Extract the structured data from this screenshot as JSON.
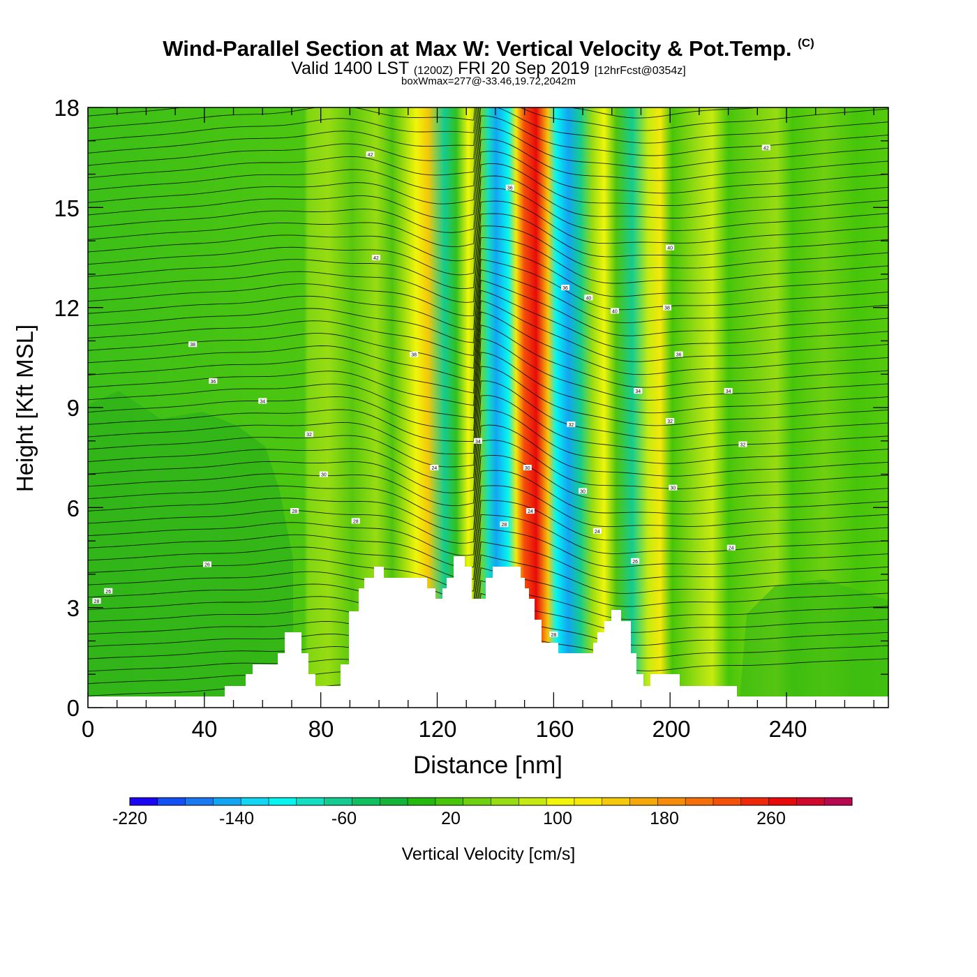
{
  "header": {
    "title": "Wind-Parallel Section at Max W: Vertical Velocity & Pot.Temp.",
    "copyright": "(C)",
    "subtitle_valid": "Valid 1400 LST",
    "subtitle_utc": "(1200Z)",
    "subtitle_date": "FRI 20 Sep 2019",
    "subtitle_fcst": "[12hrFcst@0354z]",
    "stats": "boxWmax=277@-33.46,19.72,2042m"
  },
  "chart_data": {
    "type": "heatmap",
    "title": "Wind-Parallel Section at Max W: Vertical Velocity & Pot.Temp.",
    "xlabel": "Distance [nm]",
    "ylabel": "Height [Kft MSL]",
    "xlim": [
      0,
      275
    ],
    "ylim": [
      0,
      18
    ],
    "x_ticks": [
      "0",
      "40",
      "80",
      "120",
      "160",
      "200",
      "240"
    ],
    "y_ticks": [
      "0",
      "3",
      "6",
      "9",
      "12",
      "15",
      "18"
    ],
    "colorbar": {
      "label": "Vertical Velocity [cm/s]",
      "tick_labels": [
        "-220",
        "-140",
        "-60",
        "20",
        "100",
        "180",
        "260"
      ],
      "colors": [
        "#1a06f5",
        "#1250f5",
        "#1a78f0",
        "#12a6f2",
        "#12d6f2",
        "#06f5f0",
        "#14dfc0",
        "#14cc90",
        "#10c060",
        "#14b43a",
        "#25b80e",
        "#46c50a",
        "#6fd010",
        "#98dc12",
        "#c6ea10",
        "#f0f50a",
        "#f5e80a",
        "#f5c80a",
        "#f5a80a",
        "#f58d0a",
        "#f5700a",
        "#f5500a",
        "#f0280a",
        "#e80a0a",
        "#d0082c",
        "#b80850"
      ]
    },
    "max_vertical_velocity": 277,
    "contour_labels": [
      "42",
      "42",
      "42",
      "40",
      "40",
      "40",
      "38",
      "38",
      "38",
      "36",
      "36",
      "36",
      "36",
      "34",
      "34",
      "34",
      "34",
      "32",
      "32",
      "32",
      "32",
      "30",
      "30",
      "30",
      "30",
      "28",
      "28",
      "28",
      "28",
      "26",
      "26",
      "26",
      "24",
      "24",
      "24",
      "24",
      "28"
    ]
  }
}
